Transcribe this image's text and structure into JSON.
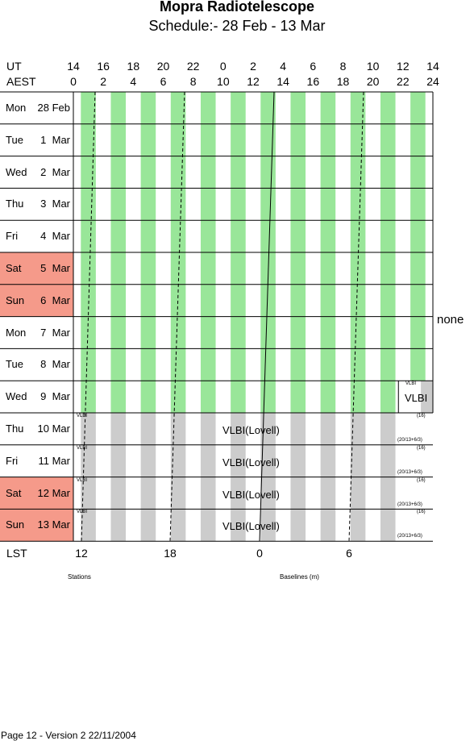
{
  "header": {
    "title": "Mopra Radiotelescope",
    "subtitle": "Schedule:- 28 Feb - 13 Mar",
    "ut_label": "UT",
    "aest_label": "AEST",
    "ut_hours": [
      "14",
      "16",
      "18",
      "20",
      "22",
      "0",
      "2",
      "4",
      "6",
      "8",
      "10",
      "12",
      "14"
    ],
    "aest_hours": [
      "0",
      "2",
      "4",
      "6",
      "8",
      "10",
      "12",
      "14",
      "16",
      "18",
      "20",
      "22",
      "24"
    ]
  },
  "days": [
    {
      "name": "Mon",
      "date": "28 Feb",
      "weekend": false,
      "schedule": "green"
    },
    {
      "name": "Tue",
      "date": "1  Mar",
      "weekend": false,
      "schedule": "green"
    },
    {
      "name": "Wed",
      "date": "2  Mar",
      "weekend": false,
      "schedule": "green"
    },
    {
      "name": "Thu",
      "date": "3  Mar",
      "weekend": false,
      "schedule": "green"
    },
    {
      "name": "Fri",
      "date": "4  Mar",
      "weekend": false,
      "schedule": "green"
    },
    {
      "name": "Sat",
      "date": "5  Mar",
      "weekend": true,
      "schedule": "green"
    },
    {
      "name": "Sun",
      "date": "6  Mar",
      "weekend": true,
      "schedule": "green"
    },
    {
      "name": "Mon",
      "date": "7  Mar",
      "weekend": false,
      "schedule": "green"
    },
    {
      "name": "Tue",
      "date": "8  Mar",
      "weekend": false,
      "schedule": "green"
    },
    {
      "name": "Wed",
      "date": "9  Mar",
      "weekend": false,
      "schedule": "green-vlbi-end"
    },
    {
      "name": "Thu",
      "date": "10 Mar",
      "weekend": false,
      "schedule": "vlbi"
    },
    {
      "name": "Fri",
      "date": "11 Mar",
      "weekend": false,
      "schedule": "vlbi"
    },
    {
      "name": "Sat",
      "date": "12 Mar",
      "weekend": true,
      "schedule": "vlbi"
    },
    {
      "name": "Sun",
      "date": "13 Mar",
      "weekend": true,
      "schedule": "vlbi"
    }
  ],
  "labels": {
    "none": "none",
    "vlbi_small": "VLBI",
    "vlbi_short": "VLBI",
    "vlbi_lovell": "VLBI(Lovell)",
    "count": "(16)",
    "config": "(20/13+6/3)"
  },
  "lst": {
    "label": "LST",
    "ticks": [
      "12",
      "18",
      "0",
      "6"
    ]
  },
  "footer_labels": {
    "stations": "Stations",
    "baselines": "Baselines (m)"
  },
  "footer": "Page 12 - Version 2  22/11/2004",
  "colors": {
    "green": "#99e699",
    "grey": "#cccccc",
    "weekend": "#f59a8a",
    "line": "#000000"
  }
}
